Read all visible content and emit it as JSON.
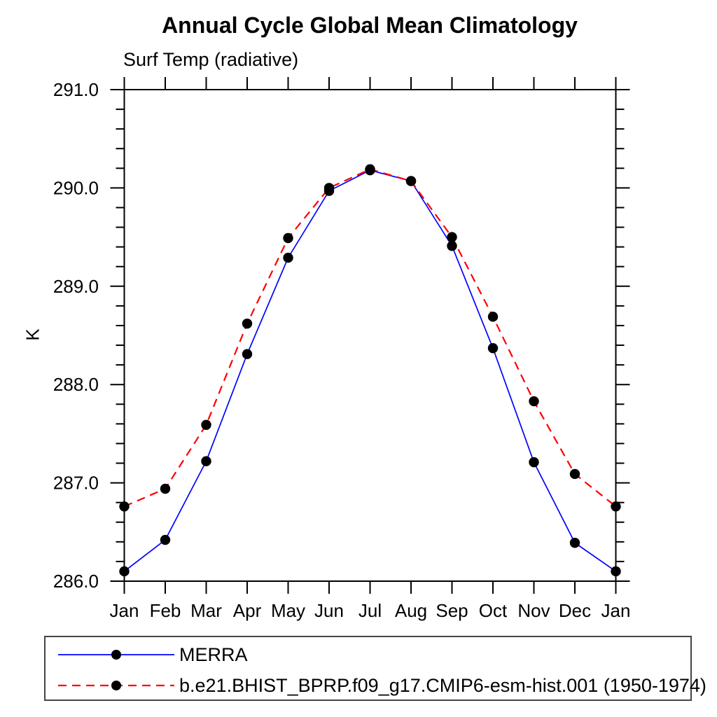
{
  "chart_data": {
    "type": "line",
    "title": "Annual Cycle Global Mean Climatology",
    "subtitle": "Surf Temp (radiative)",
    "ylabel": "K",
    "categories": [
      "Jan",
      "Feb",
      "Mar",
      "Apr",
      "May",
      "Jun",
      "Jul",
      "Aug",
      "Sep",
      "Oct",
      "Nov",
      "Dec",
      "Jan"
    ],
    "ylim": [
      286.0,
      291.0
    ],
    "ytick_interval": 1.0,
    "yminor_interval": 0.2,
    "ytick_labels": [
      "286.0",
      "287.0",
      "288.0",
      "289.0",
      "290.0",
      "291.0"
    ],
    "grid": false,
    "legend_position": "bottom-left boxed",
    "axis_color": "#000000",
    "marker_color": "#000000",
    "series": [
      {
        "name": "MERRA",
        "color": "#0000ff",
        "line_style": "solid",
        "marker": "filled-circle",
        "values": [
          286.1,
          286.42,
          287.22,
          288.31,
          289.29,
          289.97,
          290.18,
          290.07,
          289.41,
          288.37,
          287.21,
          286.39,
          286.1
        ]
      },
      {
        "name": "b.e21.BHIST_BPRP.f09_g17.CMIP6-esm-hist.001 (1950-1974)",
        "color": "#ff0000",
        "line_style": "dashed",
        "marker": "filled-circle",
        "values": [
          286.76,
          286.94,
          287.59,
          288.62,
          289.49,
          290.0,
          290.19,
          290.07,
          289.5,
          288.69,
          287.83,
          287.09,
          286.76
        ]
      }
    ]
  }
}
